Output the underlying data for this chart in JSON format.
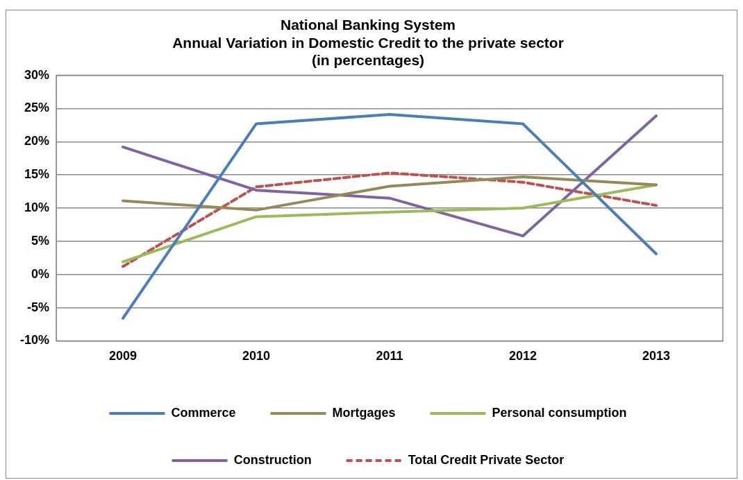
{
  "chart_data": {
    "type": "line",
    "title": "National Banking System\nAnnual Variation in Domestic Credit to the private sector\n(in percentages)",
    "categories": [
      "2009",
      "2010",
      "2011",
      "2012",
      "2013"
    ],
    "series": [
      {
        "name": "Commerce",
        "color": "#4a7ebb",
        "values": [
          -6.6,
          22.7,
          24.1,
          22.7,
          3.1
        ]
      },
      {
        "name": "Mortgages",
        "color": "#948a54",
        "values": [
          11.1,
          9.7,
          13.3,
          14.7,
          13.5
        ]
      },
      {
        "name": "Personal consumption",
        "color": "#9bbb59",
        "values": [
          1.9,
          8.7,
          9.4,
          10.0,
          13.5
        ]
      },
      {
        "name": "Construction",
        "color": "#8064a2",
        "values": [
          19.2,
          12.7,
          11.5,
          5.8,
          23.9
        ]
      },
      {
        "name": "Total Credit Private Sector",
        "color": "#c0504d",
        "values": [
          1.2,
          13.2,
          15.3,
          13.9,
          10.4
        ],
        "line_style": "dashed"
      }
    ],
    "ylim": [
      -10,
      30
    ],
    "yticks": [
      {
        "value": -10,
        "label": "-10%"
      },
      {
        "value": -5,
        "label": "-5%"
      },
      {
        "value": 0,
        "label": "0%"
      },
      {
        "value": 5,
        "label": "5%"
      },
      {
        "value": 10,
        "label": "10%"
      },
      {
        "value": 15,
        "label": "15%"
      },
      {
        "value": 20,
        "label": "20%"
      },
      {
        "value": 25,
        "label": "25%"
      },
      {
        "value": 30,
        "label": "30%"
      }
    ],
    "grid": "y",
    "legend": "bottom",
    "marker": "none"
  }
}
